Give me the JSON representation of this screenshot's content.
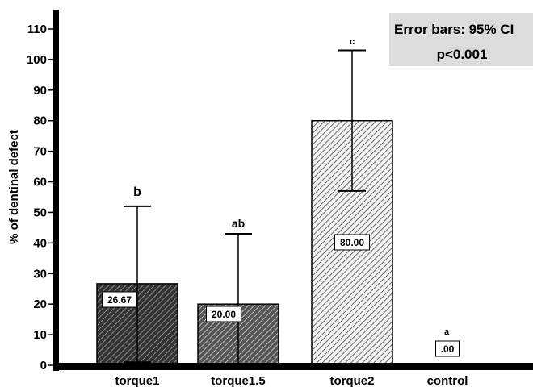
{
  "chart_data": {
    "type": "bar",
    "categories": [
      "torque1",
      "torque1.5",
      "torque2",
      "control"
    ],
    "values": [
      26.67,
      20.0,
      80.0,
      0.0
    ],
    "value_labels": [
      "26.67",
      "20.00",
      "80.00",
      ".00"
    ],
    "error_bars": {
      "lower": [
        1,
        0,
        57,
        0
      ],
      "upper": [
        52,
        43,
        103,
        0
      ]
    },
    "significance_letters": [
      "b",
      "ab",
      "c",
      "a"
    ],
    "ylabel": "% of dentinal defect",
    "xlabel": "",
    "ylim": [
      0,
      113
    ],
    "yticks": [
      0,
      10,
      20,
      30,
      40,
      50,
      60,
      70,
      80,
      90,
      100,
      110
    ],
    "grid": false,
    "annotation": {
      "line1": "Error bars: 95% CI",
      "line2": "p<0.001",
      "placement": "top-right"
    },
    "bar_fills": [
      {
        "base": "#333333",
        "stripe": "#888888"
      },
      {
        "base": "#555555",
        "stripe": "#bbbbbb"
      },
      {
        "base": "#f2f2f2",
        "stripe": "#6a6a6a"
      },
      {
        "base": "#ffffff",
        "stripe": "#ffffff"
      }
    ]
  }
}
